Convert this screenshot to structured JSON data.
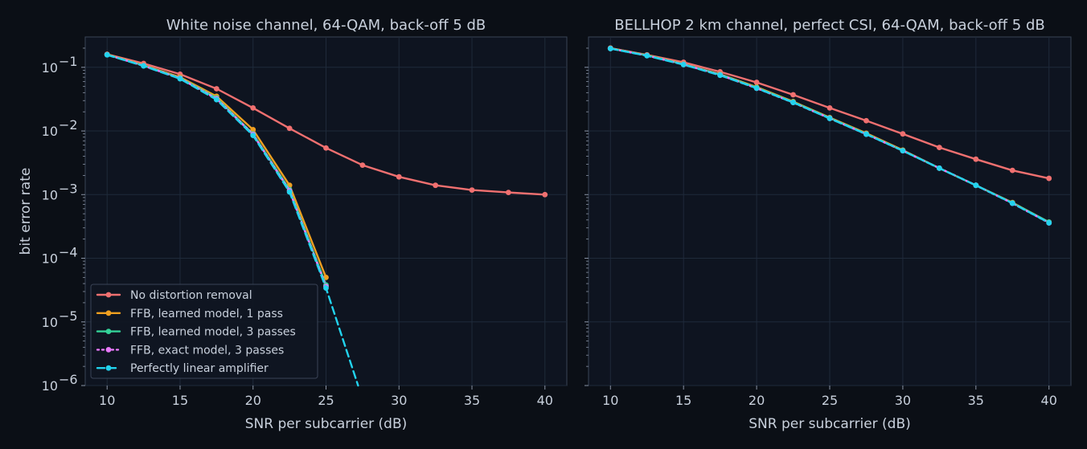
{
  "chart_data": [
    {
      "type": "line",
      "title": "White noise channel, 64-QAM, back-off 5 dB",
      "xlabel": "SNR per subcarrier (dB)",
      "ylabel": "bit error rate",
      "yscale": "log",
      "xlim": [
        8.5,
        41.5
      ],
      "ylim": [
        1e-06,
        0.3
      ],
      "xticks": [
        10,
        15,
        20,
        25,
        30,
        35,
        40
      ],
      "yticks": [
        1e-06,
        1e-05,
        0.0001,
        0.001,
        0.01,
        0.1
      ],
      "ytick_labels": [
        [
          "10",
          "−6"
        ],
        [
          "10",
          "−5"
        ],
        [
          "10",
          "−4"
        ],
        [
          "10",
          "−3"
        ],
        [
          "10",
          "−2"
        ],
        [
          "10",
          "−1"
        ]
      ],
      "grid": true,
      "legend_position": "lower-left",
      "series": [
        {
          "name": "No distortion removal",
          "color": "#f07070",
          "style": "solid",
          "marker": true,
          "x": [
            10,
            12.5,
            15,
            17.5,
            20,
            22.5,
            25,
            27.5,
            30,
            32.5,
            35,
            37.5,
            40
          ],
          "y": [
            0.16,
            0.115,
            0.078,
            0.046,
            0.023,
            0.011,
            0.0054,
            0.0029,
            0.0019,
            0.0014,
            0.00118,
            0.00108,
            0.001
          ]
        },
        {
          "name": "FFB, learned model, 1 pass",
          "color": "#f0a020",
          "style": "solid",
          "marker": true,
          "x": [
            10,
            12.5,
            15,
            17.5,
            20,
            22.5,
            25
          ],
          "y": [
            0.16,
            0.108,
            0.07,
            0.035,
            0.0105,
            0.0014,
            5e-05
          ]
        },
        {
          "name": "FFB, learned model, 3 passes",
          "color": "#34d399",
          "style": "solid",
          "marker": true,
          "x": [
            10,
            12.5,
            15,
            17.5,
            20,
            22.5,
            25
          ],
          "y": [
            0.158,
            0.107,
            0.068,
            0.033,
            0.009,
            0.0012,
            3.8e-05
          ]
        },
        {
          "name": "FFB, exact model, 3 passes",
          "color": "#e879f9",
          "style": "dotted",
          "marker": true,
          "x": [
            10,
            12.5,
            15,
            17.5,
            20,
            22.5,
            25
          ],
          "y": [
            0.158,
            0.106,
            0.067,
            0.032,
            0.0088,
            0.00115,
            3.6e-05
          ]
        },
        {
          "name": "Perfectly linear amplifier",
          "color": "#22d3ee",
          "style": "dashed",
          "marker": true,
          "x": [
            10,
            12.5,
            15,
            17.5,
            20,
            22.5,
            25,
            27.2
          ],
          "y": [
            0.157,
            0.105,
            0.066,
            0.031,
            0.0085,
            0.0011,
            3.4e-05,
            1e-06
          ]
        }
      ]
    },
    {
      "type": "line",
      "title": "BELLHOP 2 km channel, perfect CSI, 64-QAM, back-off 5 dB",
      "xlabel": "SNR per subcarrier (dB)",
      "ylabel": "",
      "yscale": "log",
      "xlim": [
        8.5,
        41.5
      ],
      "ylim": [
        1e-06,
        0.3
      ],
      "xticks": [
        10,
        15,
        20,
        25,
        30,
        35,
        40
      ],
      "yticks": [
        1e-06,
        1e-05,
        0.0001,
        0.001,
        0.01,
        0.1
      ],
      "ytick_labels": [],
      "grid": true,
      "series": [
        {
          "name": "No distortion removal",
          "color": "#f07070",
          "style": "solid",
          "marker": true,
          "x": [
            10,
            12.5,
            15,
            17.5,
            20,
            22.5,
            25,
            27.5,
            30,
            32.5,
            35,
            37.5,
            40
          ],
          "y": [
            0.2,
            0.157,
            0.12,
            0.085,
            0.058,
            0.037,
            0.023,
            0.0145,
            0.009,
            0.0055,
            0.0036,
            0.0024,
            0.0018
          ]
        },
        {
          "name": "FFB, learned model, 1 pass",
          "color": "#f0a020",
          "style": "solid",
          "marker": true,
          "x": [
            10,
            12.5,
            15,
            17.5,
            20,
            22.5,
            25,
            27.5,
            30,
            32.5,
            35,
            37.5,
            40
          ],
          "y": [
            0.2,
            0.155,
            0.113,
            0.078,
            0.049,
            0.029,
            0.0162,
            0.0092,
            0.005,
            0.0026,
            0.0014,
            0.00075,
            0.00037
          ]
        },
        {
          "name": "FFB, learned model, 3 passes",
          "color": "#34d399",
          "style": "solid",
          "marker": true,
          "x": [
            10,
            12.5,
            15,
            17.5,
            20,
            22.5,
            25,
            27.5,
            30,
            32.5,
            35,
            37.5,
            40
          ],
          "y": [
            0.198,
            0.154,
            0.112,
            0.077,
            0.048,
            0.0285,
            0.016,
            0.009,
            0.0049,
            0.0026,
            0.0014,
            0.00074,
            0.00037
          ]
        },
        {
          "name": "FFB, exact model, 3 passes",
          "color": "#e879f9",
          "style": "dotted",
          "marker": true,
          "x": [
            10,
            12.5,
            15,
            17.5,
            20,
            22.5,
            25,
            27.5,
            30,
            32.5,
            35,
            37.5,
            40
          ],
          "y": [
            0.198,
            0.153,
            0.111,
            0.076,
            0.047,
            0.028,
            0.0158,
            0.0089,
            0.0049,
            0.0026,
            0.0014,
            0.00073,
            0.00036
          ]
        },
        {
          "name": "Perfectly linear amplifier",
          "color": "#22d3ee",
          "style": "dashed",
          "marker": true,
          "x": [
            10,
            12.5,
            15,
            17.5,
            20,
            22.5,
            25,
            27.5,
            30,
            32.5,
            35,
            37.5,
            40
          ],
          "y": [
            0.197,
            0.152,
            0.11,
            0.075,
            0.047,
            0.028,
            0.0157,
            0.0089,
            0.0049,
            0.0026,
            0.0014,
            0.00073,
            0.00036
          ]
        }
      ]
    }
  ]
}
